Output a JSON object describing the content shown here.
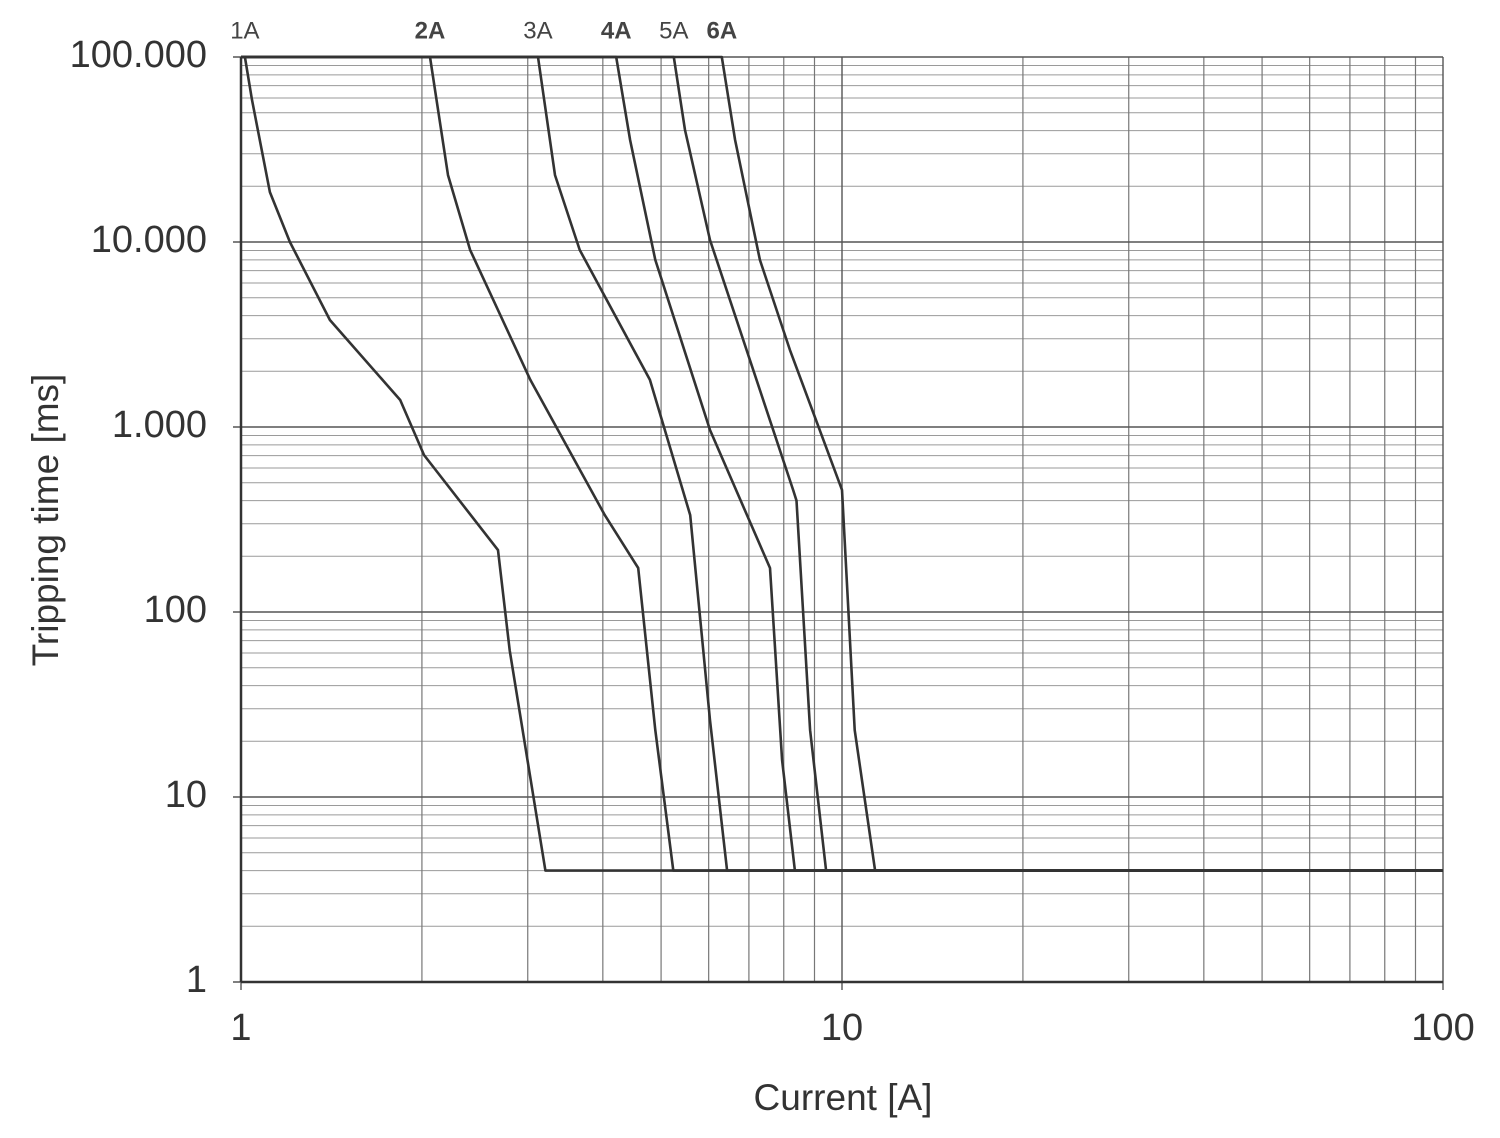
{
  "chart_data": {
    "type": "line",
    "xlabel": "Current [A]",
    "ylabel": "Tripping time [ms]",
    "xlog": true,
    "ylog": true,
    "grid": true,
    "xlim": [
      1,
      100
    ],
    "ylim": [
      1,
      100000
    ],
    "xticks": [
      1,
      10,
      100
    ],
    "yticks": [
      1,
      10,
      100,
      {
        "value": 1000,
        "label": "1.000"
      },
      {
        "value": 10000,
        "label": "10.000"
      },
      {
        "value": 100000,
        "label": "100.000"
      }
    ],
    "xminorticks": [
      2,
      3,
      4,
      5,
      6,
      7,
      8,
      9,
      20,
      30,
      40,
      50,
      60,
      70,
      80,
      90
    ],
    "yminorticks": [
      2,
      3,
      4,
      5,
      6,
      7,
      8,
      9,
      20,
      30,
      40,
      50,
      60,
      70,
      80,
      90,
      200,
      300,
      400,
      500,
      600,
      700,
      800,
      900,
      2000,
      3000,
      4000,
      5000,
      6000,
      7000,
      8000,
      9000,
      20000,
      30000,
      40000,
      50000,
      60000,
      70000,
      80000,
      90000
    ],
    "series": [
      {
        "name": "1A",
        "color": "#333333",
        "bold": false,
        "x": [
          1,
          1.015,
          1.043,
          1.117,
          1.206,
          1.406,
          1.84,
          2.016,
          2.677,
          2.8,
          3.21,
          100
        ],
        "values": [
          100000,
          100000,
          58600,
          18600,
          10000,
          3790,
          1400,
          706,
          216,
          62,
          4,
          4
        ]
      },
      {
        "name": "2A",
        "color": "#333333",
        "bold": true,
        "x": [
          1,
          2.063,
          2.21,
          2.405,
          3.03,
          4.03,
          4.58,
          4.89,
          5.24,
          100
        ],
        "values": [
          100000,
          100000,
          23000,
          9060,
          1800,
          334,
          173,
          23,
          4,
          4
        ]
      },
      {
        "name": "3A",
        "color": "#333333",
        "bold": false,
        "x": [
          1,
          3.12,
          3.33,
          3.66,
          4.79,
          5.59,
          6.03,
          6.44,
          100
        ],
        "values": [
          100000,
          100000,
          23000,
          9060,
          1800,
          334,
          26,
          4,
          4
        ]
      },
      {
        "name": "4A",
        "color": "#333333",
        "bold": true,
        "x": [
          1,
          4.21,
          4.44,
          4.89,
          6.03,
          7.59,
          7.95,
          8.35,
          100
        ],
        "values": [
          100000,
          100000,
          35600,
          8000,
          963,
          173,
          15.8,
          4,
          4
        ]
      },
      {
        "name": "5A",
        "color": "#333333",
        "bold": false,
        "x": [
          1,
          5.25,
          5.48,
          6.03,
          7.3,
          8.29,
          8.4,
          8.85,
          9.41,
          100
        ],
        "values": [
          100000,
          100000,
          40300,
          10250,
          1585,
          457,
          400,
          23,
          4,
          4
        ]
      },
      {
        "name": "6A",
        "color": "#333333",
        "bold": true,
        "x": [
          1,
          6.31,
          6.64,
          7.3,
          8.19,
          10,
          10.5,
          11.35,
          100
        ],
        "values": [
          100000,
          100000,
          35600,
          8000,
          2610,
          457,
          23,
          4,
          4
        ]
      }
    ]
  }
}
